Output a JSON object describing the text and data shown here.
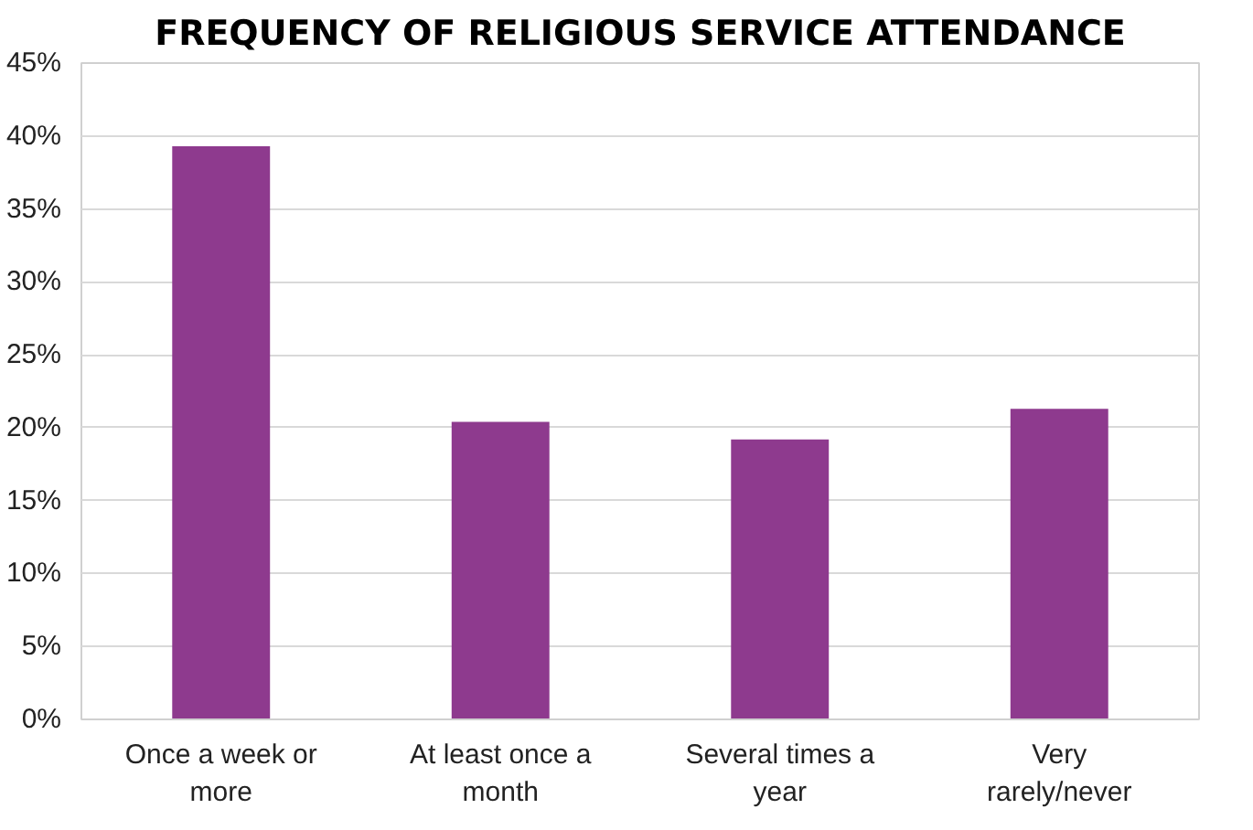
{
  "chart_data": {
    "type": "bar",
    "title": "FREQUENCY OF RELIGIOUS SERVICE ATTENDANCE",
    "categories": [
      "Once a week or more",
      "At least once a month",
      "Several times a year",
      "Very rarely/never"
    ],
    "values": [
      39.3,
      20.4,
      19.2,
      21.3
    ],
    "color": "#8e3a8e",
    "ylim": [
      0,
      45
    ],
    "yticks": [
      {
        "value": 0,
        "label": "0%"
      },
      {
        "value": 5,
        "label": "5%"
      },
      {
        "value": 10,
        "label": "10%"
      },
      {
        "value": 15,
        "label": "15%"
      },
      {
        "value": 20,
        "label": "20%"
      },
      {
        "value": 25,
        "label": "25%"
      },
      {
        "value": 30,
        "label": "30%"
      },
      {
        "value": 35,
        "label": "35%"
      },
      {
        "value": 40,
        "label": "40%"
      },
      {
        "value": 45,
        "label": "45%"
      }
    ],
    "grid": "y"
  }
}
